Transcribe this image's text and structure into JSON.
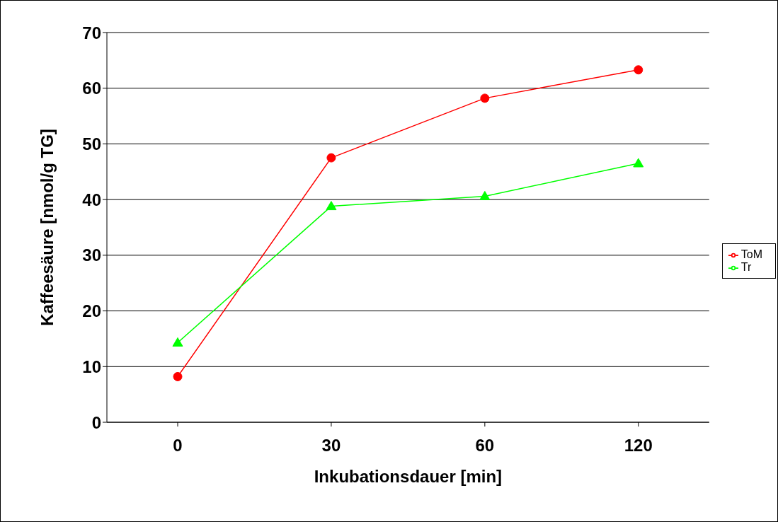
{
  "chart_data": {
    "type": "line",
    "xlabel": "Inkubationsdauer [min]",
    "ylabel": "Kaffeesäure [nmol/g TG]",
    "categories": [
      "0",
      "30",
      "60",
      "120"
    ],
    "series": [
      {
        "name": "ToM",
        "color": "#ff0000",
        "marker": "circle",
        "values": [
          8.2,
          47.5,
          58.2,
          63.3
        ]
      },
      {
        "name": "Tr",
        "color": "#00ff00",
        "marker": "triangle",
        "values": [
          14.3,
          38.8,
          40.6,
          46.5
        ]
      }
    ],
    "ylim": [
      0,
      70
    ],
    "yticks": [
      0,
      10,
      20,
      30,
      40,
      50,
      60,
      70
    ],
    "grid": "y",
    "legend": "right"
  }
}
